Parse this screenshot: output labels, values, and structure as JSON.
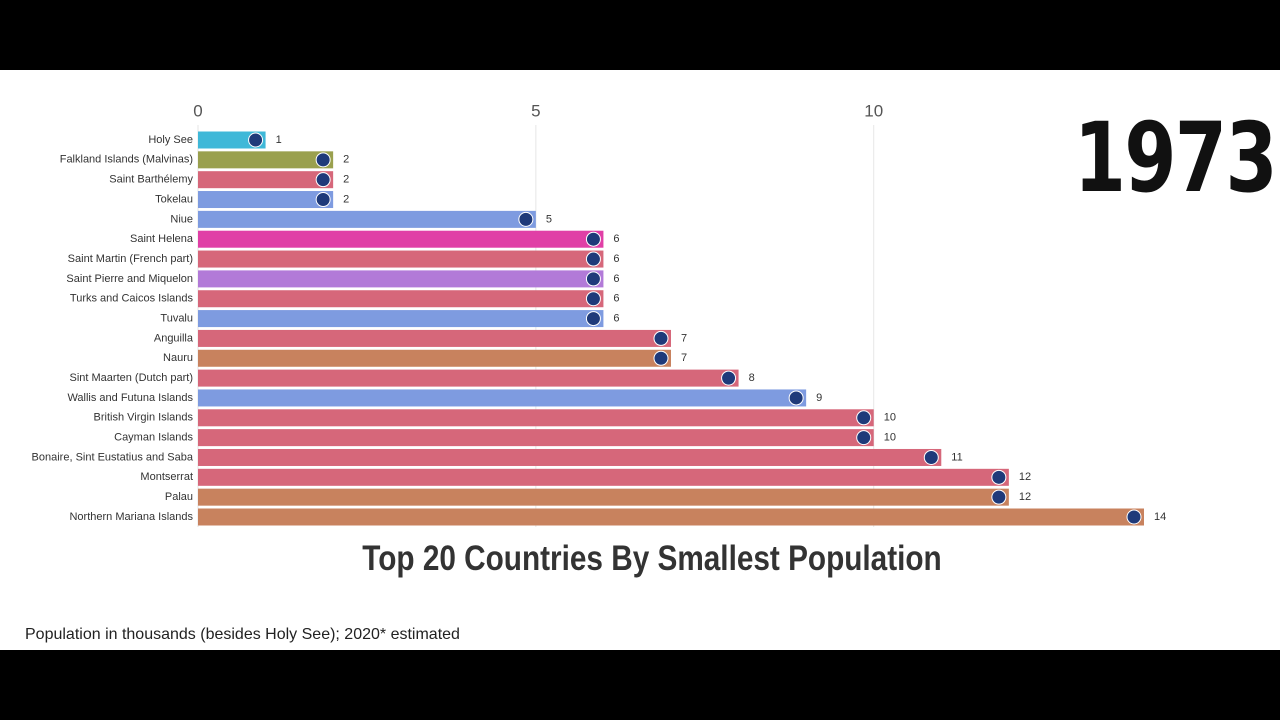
{
  "chart_data": {
    "type": "bar",
    "orientation": "horizontal",
    "title": "Top 20 Countries By Smallest Population",
    "year": "1973",
    "footnote": "Population in thousands (besides Holy See); 2020* estimated",
    "categories": [
      "Holy See",
      "Falkland Islands (Malvinas)",
      "Saint Barthélemy",
      "Tokelau",
      "Niue",
      "Saint Helena",
      "Saint Martin (French part)",
      "Saint Pierre and Miquelon",
      "Turks and Caicos Islands",
      "Tuvalu",
      "Anguilla",
      "Nauru",
      "Sint Maarten (Dutch part)",
      "Wallis and Futuna Islands",
      "British Virgin Islands",
      "Cayman Islands",
      "Bonaire, Sint Eustatius and Saba",
      "Montserrat",
      "Palau",
      "Northern Mariana Islands"
    ],
    "values": [
      1,
      2,
      2,
      2,
      5,
      6,
      6,
      6,
      6,
      6,
      7,
      7,
      8,
      9,
      10,
      10,
      11,
      12,
      12,
      14
    ],
    "colors": [
      "#3fb8d8",
      "#9aa04e",
      "#d6677a",
      "#7e9be0",
      "#7e9be0",
      "#e03fa6",
      "#d6677a",
      "#b27ad8",
      "#d6677a",
      "#7e9be0",
      "#d6677a",
      "#c8825e",
      "#d6677a",
      "#7e9be0",
      "#d6677a",
      "#d6677a",
      "#d6677a",
      "#d6677a",
      "#c8825e",
      "#c8825e"
    ],
    "xlim": [
      0,
      14
    ],
    "xticks": [
      0,
      5,
      10
    ],
    "grid": true
  }
}
